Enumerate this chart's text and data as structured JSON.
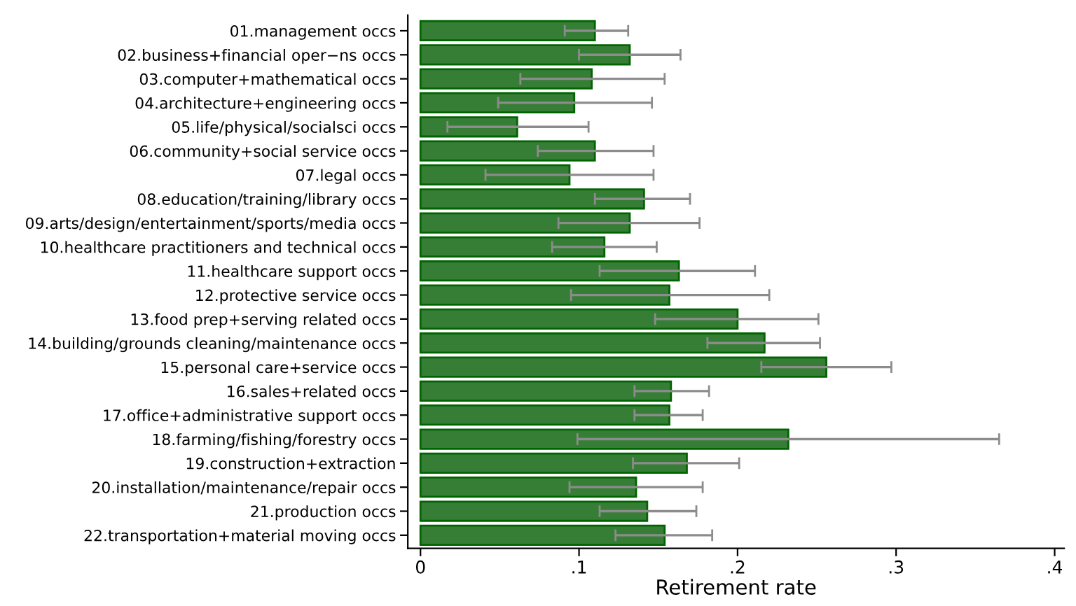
{
  "chart_data": {
    "type": "bar",
    "orientation": "horizontal",
    "xlabel": "Retirement rate",
    "categories": [
      "01.management occs",
      "02.business+financial oper−ns occs",
      "03.computer+mathematical occs",
      "04.architecture+engineering occs",
      "05.life/physical/socialsci occs",
      "06.community+social service occs",
      "07.legal occs",
      "08.education/training/library occs",
      "09.arts/design/entertainment/sports/media occs",
      "10.healthcare practitioners and technical occs",
      "11.healthcare support occs",
      "12.protective service occs",
      "13.food prep+serving related occs",
      "14.building/grounds cleaning/maintenance occs",
      "15.personal care+service occs",
      "16.sales+related occs",
      "17.office+administrative support occs",
      "18.farming/fishing/forestry occs",
      "19.construction+extraction",
      "20.installation/maintenance/repair occs",
      "21.production occs",
      "22.transportation+material moving occs"
    ],
    "values": [
      0.11,
      0.132,
      0.108,
      0.097,
      0.061,
      0.11,
      0.094,
      0.141,
      0.132,
      0.116,
      0.163,
      0.157,
      0.2,
      0.217,
      0.256,
      0.158,
      0.157,
      0.232,
      0.168,
      0.136,
      0.143,
      0.154
    ],
    "errors": [
      [
        0.091,
        0.131
      ],
      [
        0.1,
        0.164
      ],
      [
        0.063,
        0.154
      ],
      [
        0.049,
        0.146
      ],
      [
        0.017,
        0.106
      ],
      [
        0.074,
        0.147
      ],
      [
        0.041,
        0.147
      ],
      [
        0.11,
        0.17
      ],
      [
        0.087,
        0.176
      ],
      [
        0.083,
        0.149
      ],
      [
        0.113,
        0.211
      ],
      [
        0.095,
        0.22
      ],
      [
        0.148,
        0.251
      ],
      [
        0.181,
        0.252
      ],
      [
        0.215,
        0.297
      ],
      [
        0.135,
        0.182
      ],
      [
        0.135,
        0.178
      ],
      [
        0.099,
        0.365
      ],
      [
        0.134,
        0.201
      ],
      [
        0.094,
        0.178
      ],
      [
        0.113,
        0.174
      ],
      [
        0.123,
        0.184
      ]
    ],
    "color": "#367e35",
    "xlim": [
      -0.008,
      0.406
    ],
    "xticks": [
      {
        "value": 0,
        "label": "0"
      },
      {
        "value": 0.1,
        "label": ".1"
      },
      {
        "value": 0.2,
        "label": ".2"
      },
      {
        "value": 0.3,
        "label": ".3"
      },
      {
        "value": 0.4,
        "label": ".4"
      }
    ],
    "grid": false
  }
}
